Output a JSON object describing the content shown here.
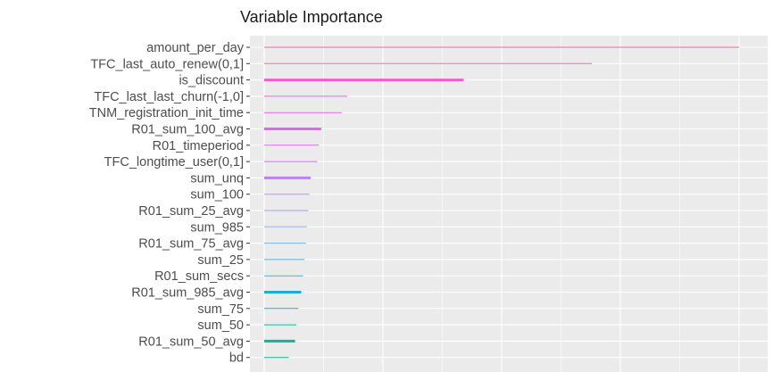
{
  "chart_data": {
    "type": "bar",
    "orientation": "horizontal",
    "title": "Variable Importance",
    "xlabel": "",
    "ylabel": "",
    "grid": true,
    "panel_background": "#ebebeb",
    "grid_color": "#ffffff",
    "xlim": [
      0,
      1.05
    ],
    "categories": [
      "amount_per_day",
      "TFC_last_auto_renew(0,1]",
      "is_discount",
      "TFC_last_last_churn(-1,0]",
      "TNM_registration_init_time",
      "R01_sum_100_avg",
      "R01_timeperiod",
      "TFC_longtime_user(0,1]",
      "sum_unq",
      "sum_100",
      "R01_sum_25_avg",
      "sum_985",
      "R01_sum_75_avg",
      "sum_25",
      "R01_sum_secs",
      "R01_sum_985_avg",
      "sum_75",
      "sum_50",
      "R01_sum_50_avg",
      "bd"
    ],
    "values": [
      1.0,
      0.69,
      0.42,
      0.175,
      0.163,
      0.12,
      0.115,
      0.112,
      0.098,
      0.095,
      0.093,
      0.09,
      0.088,
      0.085,
      0.082,
      0.078,
      0.072,
      0.068,
      0.065,
      0.052
    ],
    "line_weights": [
      1,
      1,
      3,
      1,
      1,
      3,
      1,
      1,
      3,
      1,
      1,
      1,
      1,
      1,
      1,
      3,
      1,
      1,
      3,
      1
    ],
    "colors": [
      "#f564a8",
      "#f564a8",
      "#f25ed0",
      "#f05fe2",
      "#ec61f0",
      "#e364f3",
      "#db68f5",
      "#d06cf7",
      "#c17ef5",
      "#b38ef4",
      "#a49ff3",
      "#8faef0",
      "#6cb6ed",
      "#4ab5ea",
      "#33b4e2",
      "#1faecd",
      "#18b0bb",
      "#13b2a8",
      "#10b29a",
      "#0fb38c"
    ]
  }
}
